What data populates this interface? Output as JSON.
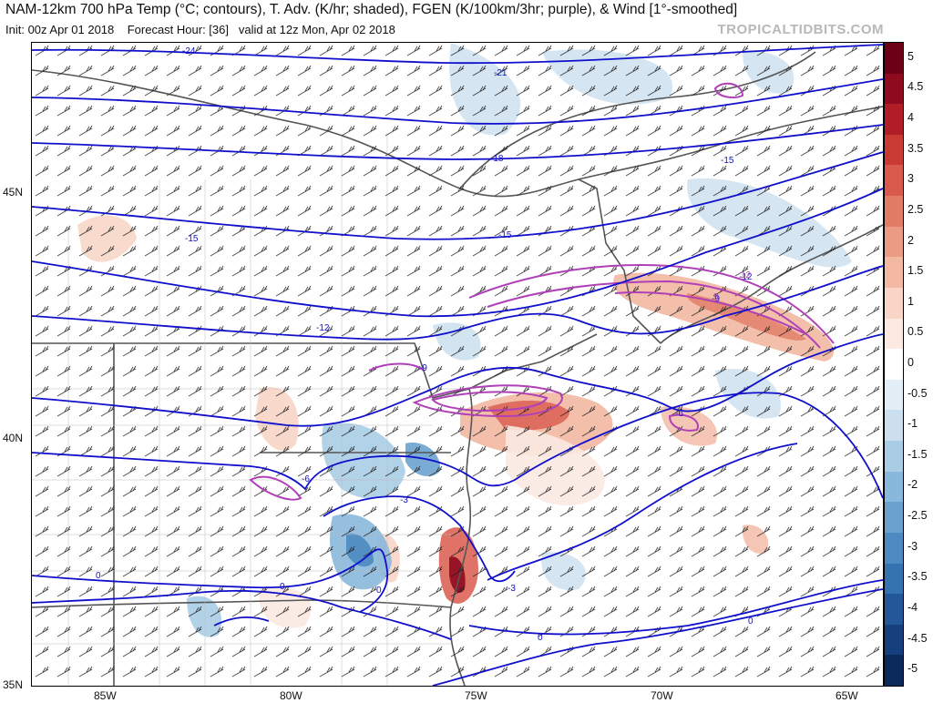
{
  "header": {
    "title": "NAM-12km 700 hPa Temp (°C; contours), T. Adv. (K/hr; shaded), FGEN (K/100km/3hr; purple), & Wind [1°-smoothed]",
    "init": "Init: 00z Apr 01 2018",
    "forecast_hour": "Forecast Hour: [36]",
    "valid": "valid at 12z Mon, Apr 02 2018",
    "brand": "TROPICALTIDBITS.COM"
  },
  "axes": {
    "lat_labels": [
      "45N",
      "40N",
      "35N"
    ],
    "lon_labels": [
      "85W",
      "80W",
      "75W",
      "70W",
      "65W"
    ]
  },
  "colorbar": {
    "labels": [
      "5",
      "4.5",
      "4",
      "3.5",
      "3",
      "2.5",
      "2",
      "1.5",
      "1",
      "0.5",
      "0",
      "-0.5",
      "-1",
      "-1.5",
      "-2",
      "-2.5",
      "-3",
      "-3.5",
      "-4",
      "-4.5",
      "-5"
    ],
    "colors": [
      "#6b0016",
      "#8e0a1e",
      "#b11d26",
      "#c93a35",
      "#d95a4d",
      "#e27c66",
      "#eb9b84",
      "#f2b8a2",
      "#f8d5c6",
      "#fbe9e2",
      "#ffffff",
      "#e4eef6",
      "#cbdfee",
      "#aacde6",
      "#88b8dc",
      "#6aa2cf",
      "#4d8ac1",
      "#3572b0",
      "#22589a",
      "#153f7d",
      "#0b2a5c"
    ]
  },
  "contours": {
    "labels": [
      "-24",
      "-21",
      "-18",
      "-15",
      "-15",
      "-15",
      "-12",
      "-12",
      "-9",
      "-9",
      "-6",
      "-6",
      "-3",
      "-3",
      "0",
      "0",
      "0",
      "0",
      "0"
    ],
    "fgen_labels": [
      "12",
      "9"
    ]
  },
  "colors": {
    "contour": "#1010cc",
    "fgen": "#b040b8",
    "border": "#555555"
  }
}
